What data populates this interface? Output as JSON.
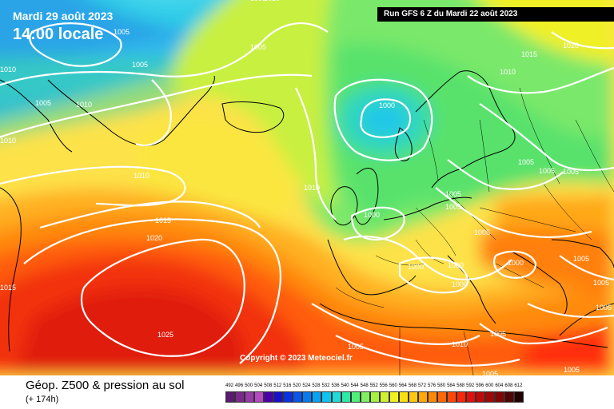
{
  "header": {
    "valid_date": "Mardi 29 août 2023",
    "valid_time": "14:00 locale",
    "run_info": "Run GFS 6 Z du Mardi 22 août 2023"
  },
  "copyright": "Copyright © 2023 Meteociel.fr",
  "footer": {
    "title": "Géop. Z500 & pression au sol",
    "subtitle": "(+ 174h)"
  },
  "legend": {
    "labels": [
      "492",
      "496",
      "500",
      "504",
      "508",
      "512",
      "516",
      "520",
      "524",
      "528",
      "532",
      "536",
      "540",
      "544",
      "548",
      "552",
      "556",
      "560",
      "564",
      "568",
      "572",
      "576",
      "580",
      "584",
      "588",
      "592",
      "596",
      "600",
      "604",
      "608",
      "612"
    ],
    "colors": [
      "#5a1a6e",
      "#7a2a8a",
      "#9a3aa6",
      "#b44ac2",
      "#4a00aa",
      "#1a10c8",
      "#0a30e0",
      "#0a55ee",
      "#0a7af0",
      "#0aa2f4",
      "#10c4f0",
      "#20dcd8",
      "#30e8a8",
      "#50f07a",
      "#80f060",
      "#a8f040",
      "#d0f030",
      "#f0f020",
      "#f8e010",
      "#ffc810",
      "#ffa808",
      "#ff8808",
      "#ff6808",
      "#ff4808",
      "#f82808",
      "#e01010",
      "#c00a0a",
      "#a00808",
      "#800606",
      "#500404",
      "#200202"
    ]
  },
  "isobar_labels": [
    "1005",
    "1015",
    "1005",
    "1005",
    "1005",
    "1010",
    "1010",
    "1010",
    "1010",
    "1015",
    "1020",
    "1025",
    "1010",
    "1000",
    "1005",
    "1015",
    "1020",
    "1010",
    "1005",
    "1005",
    "1005",
    "1005",
    "1005",
    "1005",
    "1000",
    "1000",
    "1000",
    "1000",
    "1000",
    "1005",
    "1005",
    "1010",
    "1005",
    "1005",
    "1005",
    "1005",
    "1010",
    "1005"
  ],
  "icons": {
    "coastline": "coastline-outline",
    "borders": "country-borders"
  }
}
